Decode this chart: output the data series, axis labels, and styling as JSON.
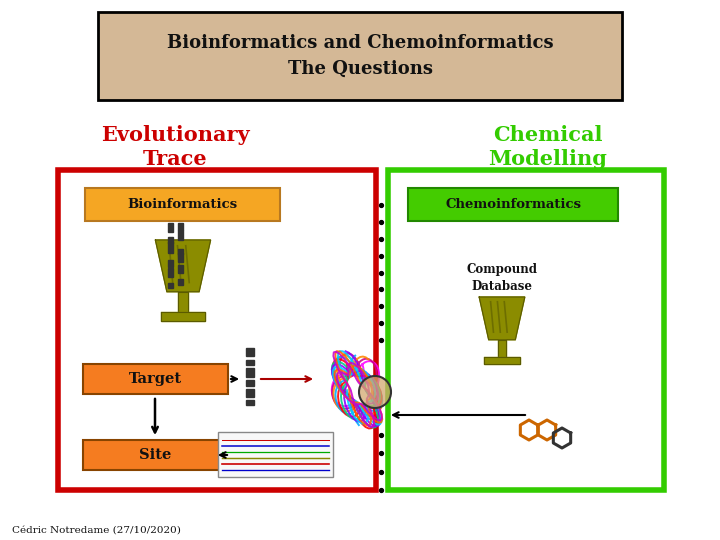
{
  "title_line1": "Bioinformatics and Chemoinformatics",
  "title_line2": "The Questions",
  "title_bg": "#d4b896",
  "title_border": "#000000",
  "left_heading": "Evolutionary\nTrace",
  "right_heading": "Chemical\nModelling",
  "left_heading_color": "#cc0000",
  "right_heading_color": "#33cc00",
  "left_box_color": "#cc0000",
  "right_box_color": "#33cc00",
  "bio_label_bg": "#f5a623",
  "bio_label_text": "Bioinformatics",
  "chemo_label_bg": "#44cc00",
  "chemo_label_text": "Chemoinformatics",
  "target_label_bg": "#f57c20",
  "target_label_text": "Target",
  "site_label_bg": "#f57c20",
  "site_label_text": "Site",
  "compound_text": "Compound\nDatabase",
  "footer_text": "Cédric Notredame (27/10/2020)",
  "background_color": "#ffffff",
  "goblet_color": "#8b8c00",
  "goblet_dark": "#5a5a00"
}
